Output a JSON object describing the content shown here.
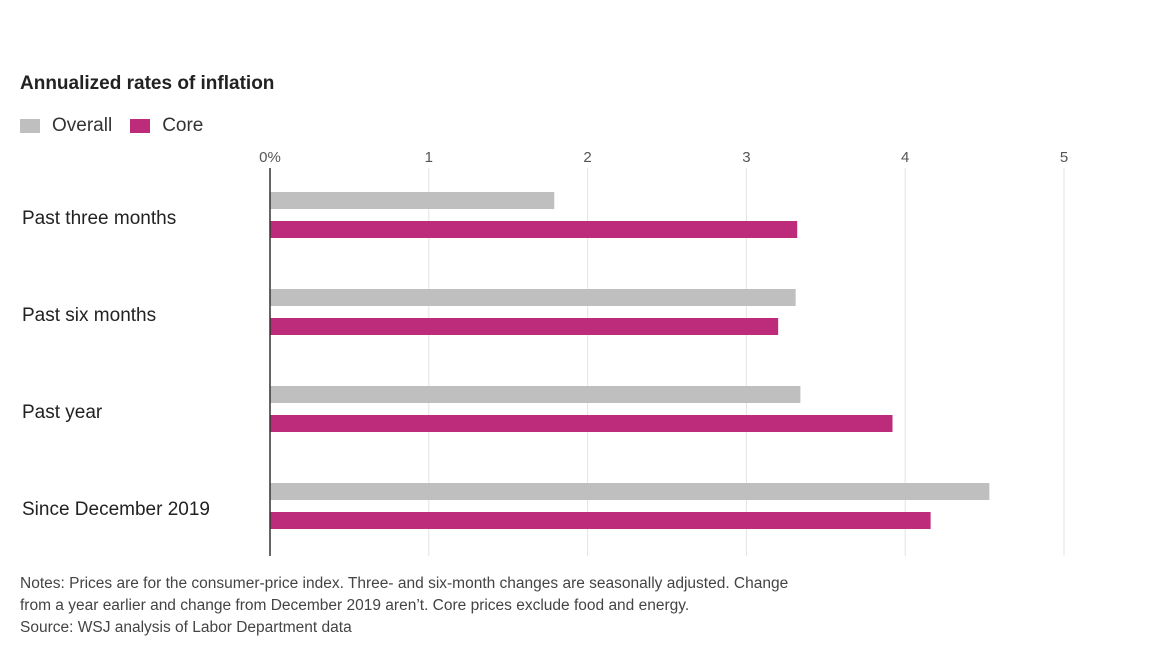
{
  "chart_data": {
    "type": "bar",
    "orientation": "horizontal",
    "title": "Annualized rates of inflation",
    "categories": [
      "Past three months",
      "Past six months",
      "Past year",
      "Since December 2019"
    ],
    "series": [
      {
        "name": "Overall",
        "values": [
          1.79,
          3.31,
          3.34,
          4.53
        ]
      },
      {
        "name": "Core",
        "values": [
          3.32,
          3.2,
          3.92,
          4.16
        ]
      }
    ],
    "xlim": [
      0,
      5
    ],
    "ticks": [
      "0%",
      "1",
      "2",
      "3",
      "4",
      "5"
    ],
    "grid": true,
    "legend_position": "top-left",
    "colors": {
      "Overall": "#bfbfbf",
      "Core": "#bc2c7a",
      "axis": "#333333",
      "grid": "#e3e3e3"
    }
  },
  "notes": {
    "line1": "Notes: Prices are for the consumer-price index. Three- and six-month changes are seasonally adjusted. Change",
    "line2": "from a year earlier and change from December 2019 aren’t. Core prices exclude food and energy.",
    "line3": "Source: WSJ analysis of Labor Department data"
  }
}
